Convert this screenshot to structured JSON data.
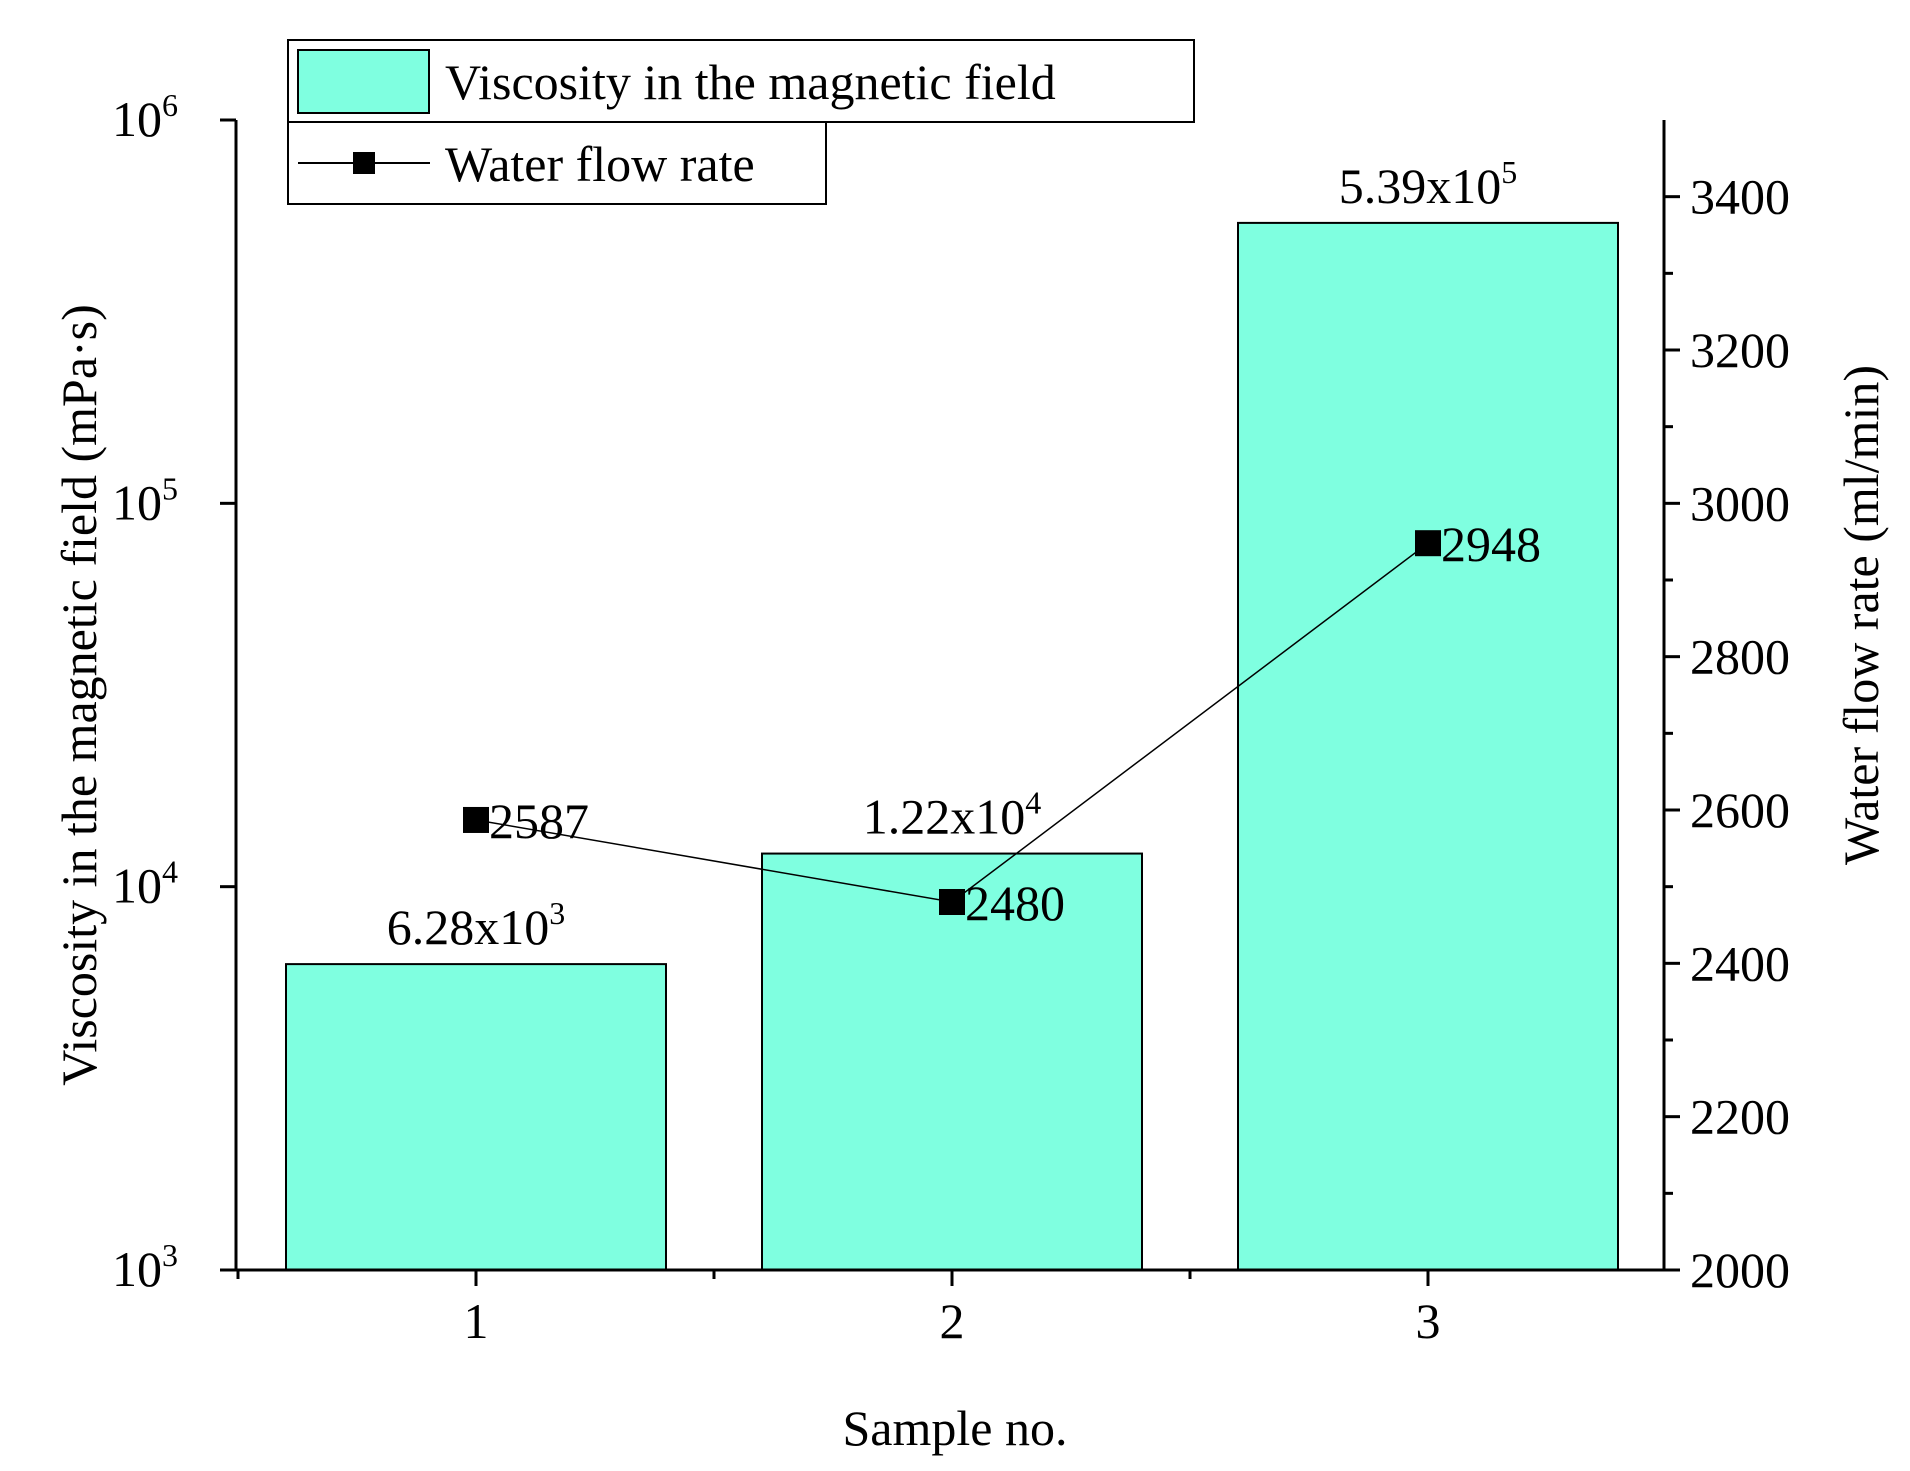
{
  "chart_data": {
    "type": "bar",
    "xlabel": "Sample no.",
    "categories": [
      "1",
      "2",
      "3"
    ],
    "series": [
      {
        "name": "Viscosity in the magnetic field",
        "type": "bar",
        "axis": "left",
        "values": [
          6280,
          12200,
          539000
        ],
        "data_labels": [
          {
            "mantissa": "6.28x10",
            "exp": "3"
          },
          {
            "mantissa": "1.22x10",
            "exp": "4"
          },
          {
            "mantissa": "5.39x10",
            "exp": "5"
          }
        ],
        "color": "#7fffe0"
      },
      {
        "name": "Water flow rate",
        "type": "line",
        "marker": "square",
        "axis": "right",
        "values": [
          2587,
          2480,
          2948
        ],
        "data_labels": [
          "2587",
          "2480",
          "2948"
        ],
        "color": "#000000"
      }
    ],
    "y_left": {
      "label": "Viscosity in the magnetic field (mPa·s)",
      "scale": "log",
      "ylim": [
        1000,
        1000000
      ],
      "ticks": [
        {
          "value": 1000,
          "base": "10",
          "exp": "3"
        },
        {
          "value": 10000,
          "base": "10",
          "exp": "4"
        },
        {
          "value": 100000,
          "base": "10",
          "exp": "5"
        },
        {
          "value": 1000000,
          "base": "10",
          "exp": "6"
        }
      ]
    },
    "y_right": {
      "label": "Water flow rate (ml/min)",
      "scale": "linear",
      "ylim": [
        2000,
        3500
      ],
      "ticks": [
        "2000",
        "2200",
        "2400",
        "2600",
        "2800",
        "3000",
        "3200",
        "3400"
      ],
      "minor_step": 100
    },
    "legend": {
      "placement": "top-left"
    },
    "grid": false
  }
}
